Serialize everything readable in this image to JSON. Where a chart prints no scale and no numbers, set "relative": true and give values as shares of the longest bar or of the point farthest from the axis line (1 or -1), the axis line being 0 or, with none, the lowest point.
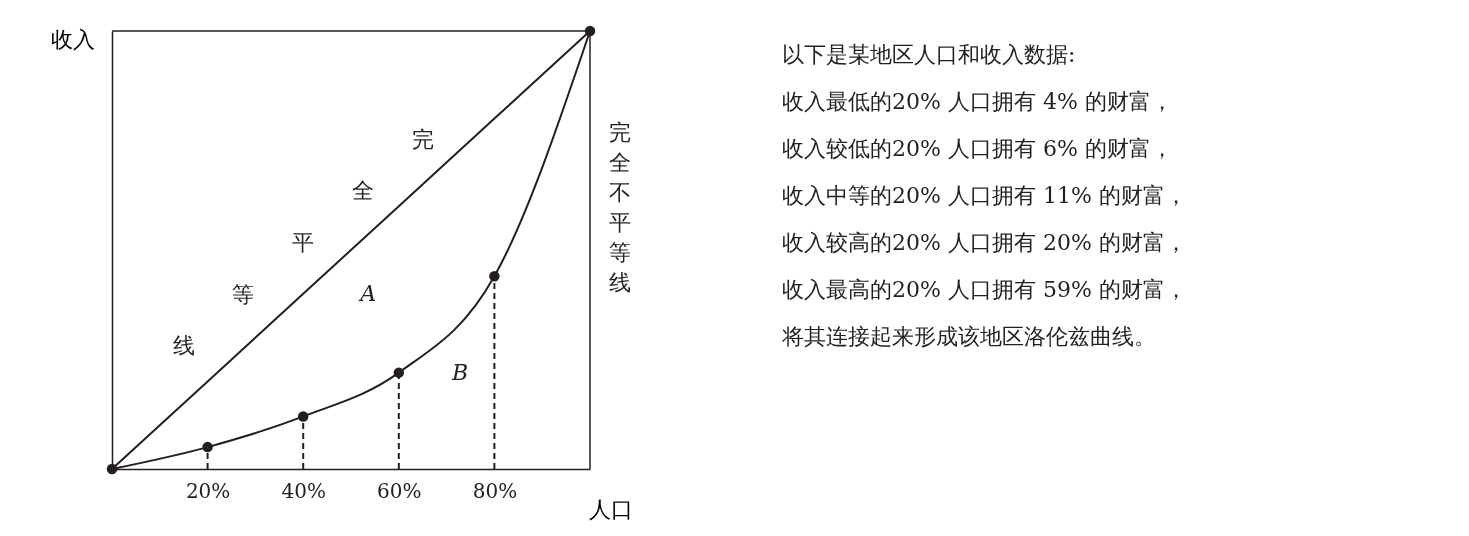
{
  "chart_data": {
    "type": "line",
    "relative": true,
    "xlabel": "人口",
    "ylabel": "收入",
    "xlim": [
      0,
      100
    ],
    "xticks": [
      {
        "value": 20,
        "label": "20%"
      },
      {
        "value": 40,
        "label": "40%"
      },
      {
        "value": 60,
        "label": "60%"
      },
      {
        "value": 80,
        "label": "80%"
      }
    ],
    "tick_labels": "x",
    "grid": false,
    "x": [
      0,
      20,
      40,
      60,
      80,
      100
    ],
    "series": [
      {
        "color": "#231f20",
        "values": [
          0,
          0.2,
          0.4,
          0.6,
          0.8,
          1
        ],
        "marker": "none"
      },
      {
        "color": "#231f20",
        "values": [
          0,
          0.05,
          0.12,
          0.22,
          0.44,
          1
        ],
        "marker": "circle"
      },
      {
        "color": "#231f20",
        "x": [
          20,
          20
        ],
        "values": [
          0,
          0.05
        ],
        "line_style": "dashed",
        "marker": "none"
      },
      {
        "color": "#231f20",
        "x": [
          40,
          40
        ],
        "values": [
          0,
          0.12
        ],
        "line_style": "dashed",
        "marker": "none"
      },
      {
        "color": "#231f20",
        "x": [
          60,
          60
        ],
        "values": [
          0,
          0.22
        ],
        "line_style": "dashed",
        "marker": "none"
      },
      {
        "color": "#231f20",
        "x": [
          80,
          80
        ],
        "values": [
          0,
          0.44
        ],
        "line_style": "dashed",
        "marker": "none"
      }
    ],
    "annotations": [
      "完全平等线",
      "完全不平等线",
      "以下是某地区人口和收入数据:",
      "收入最低的20% 人口拥有 4% 的财富，",
      "收入较低的20% 人口拥有 6% 的财富，",
      "收入中等的20% 人口拥有 11% 的财富，",
      "收入较高的20% 人口拥有 20% 的财富，",
      "收入最高的20% 人口拥有 59% 的财富，",
      "将其连接起来形成该地区洛伦兹曲线。",
      "A",
      "B"
    ]
  }
}
